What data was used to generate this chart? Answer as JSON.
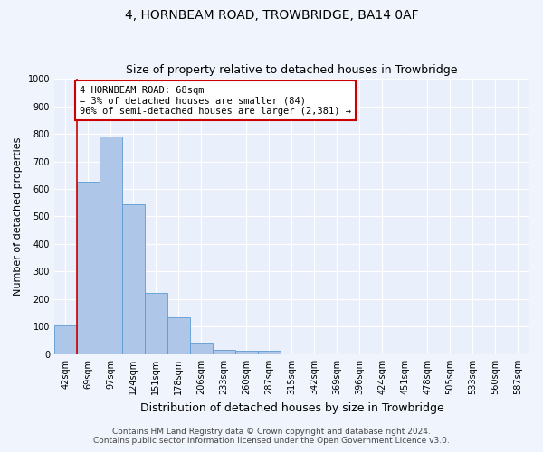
{
  "title": "4, HORNBEAM ROAD, TROWBRIDGE, BA14 0AF",
  "subtitle": "Size of property relative to detached houses in Trowbridge",
  "xlabel": "Distribution of detached houses by size in Trowbridge",
  "ylabel": "Number of detached properties",
  "bar_labels": [
    "42sqm",
    "69sqm",
    "97sqm",
    "124sqm",
    "151sqm",
    "178sqm",
    "206sqm",
    "233sqm",
    "260sqm",
    "287sqm",
    "315sqm",
    "342sqm",
    "369sqm",
    "396sqm",
    "424sqm",
    "451sqm",
    "478sqm",
    "505sqm",
    "533sqm",
    "560sqm",
    "587sqm"
  ],
  "bar_values": [
    105,
    625,
    790,
    543,
    223,
    135,
    42,
    17,
    12,
    13,
    0,
    0,
    0,
    0,
    0,
    0,
    0,
    0,
    0,
    0,
    0
  ],
  "bar_color": "#aec6e8",
  "bar_edge_color": "#5b9bd5",
  "ylim": [
    0,
    1000
  ],
  "yticks": [
    0,
    100,
    200,
    300,
    400,
    500,
    600,
    700,
    800,
    900,
    1000
  ],
  "vline_bar_index": 0.52,
  "annotation_text": "4 HORNBEAM ROAD: 68sqm\n← 3% of detached houses are smaller (84)\n96% of semi-detached houses are larger (2,381) →",
  "annotation_box_color": "#ffffff",
  "annotation_box_edge": "#cc0000",
  "vline_color": "#cc0000",
  "footer1": "Contains HM Land Registry data © Crown copyright and database right 2024.",
  "footer2": "Contains public sector information licensed under the Open Government Licence v3.0.",
  "bg_color": "#eaf0fb",
  "fig_bg_color": "#f0f4fc",
  "grid_color": "#ffffff",
  "title_fontsize": 10,
  "subtitle_fontsize": 9,
  "xlabel_fontsize": 9,
  "ylabel_fontsize": 8,
  "tick_fontsize": 7,
  "annotation_fontsize": 7.5,
  "footer_fontsize": 6.5
}
